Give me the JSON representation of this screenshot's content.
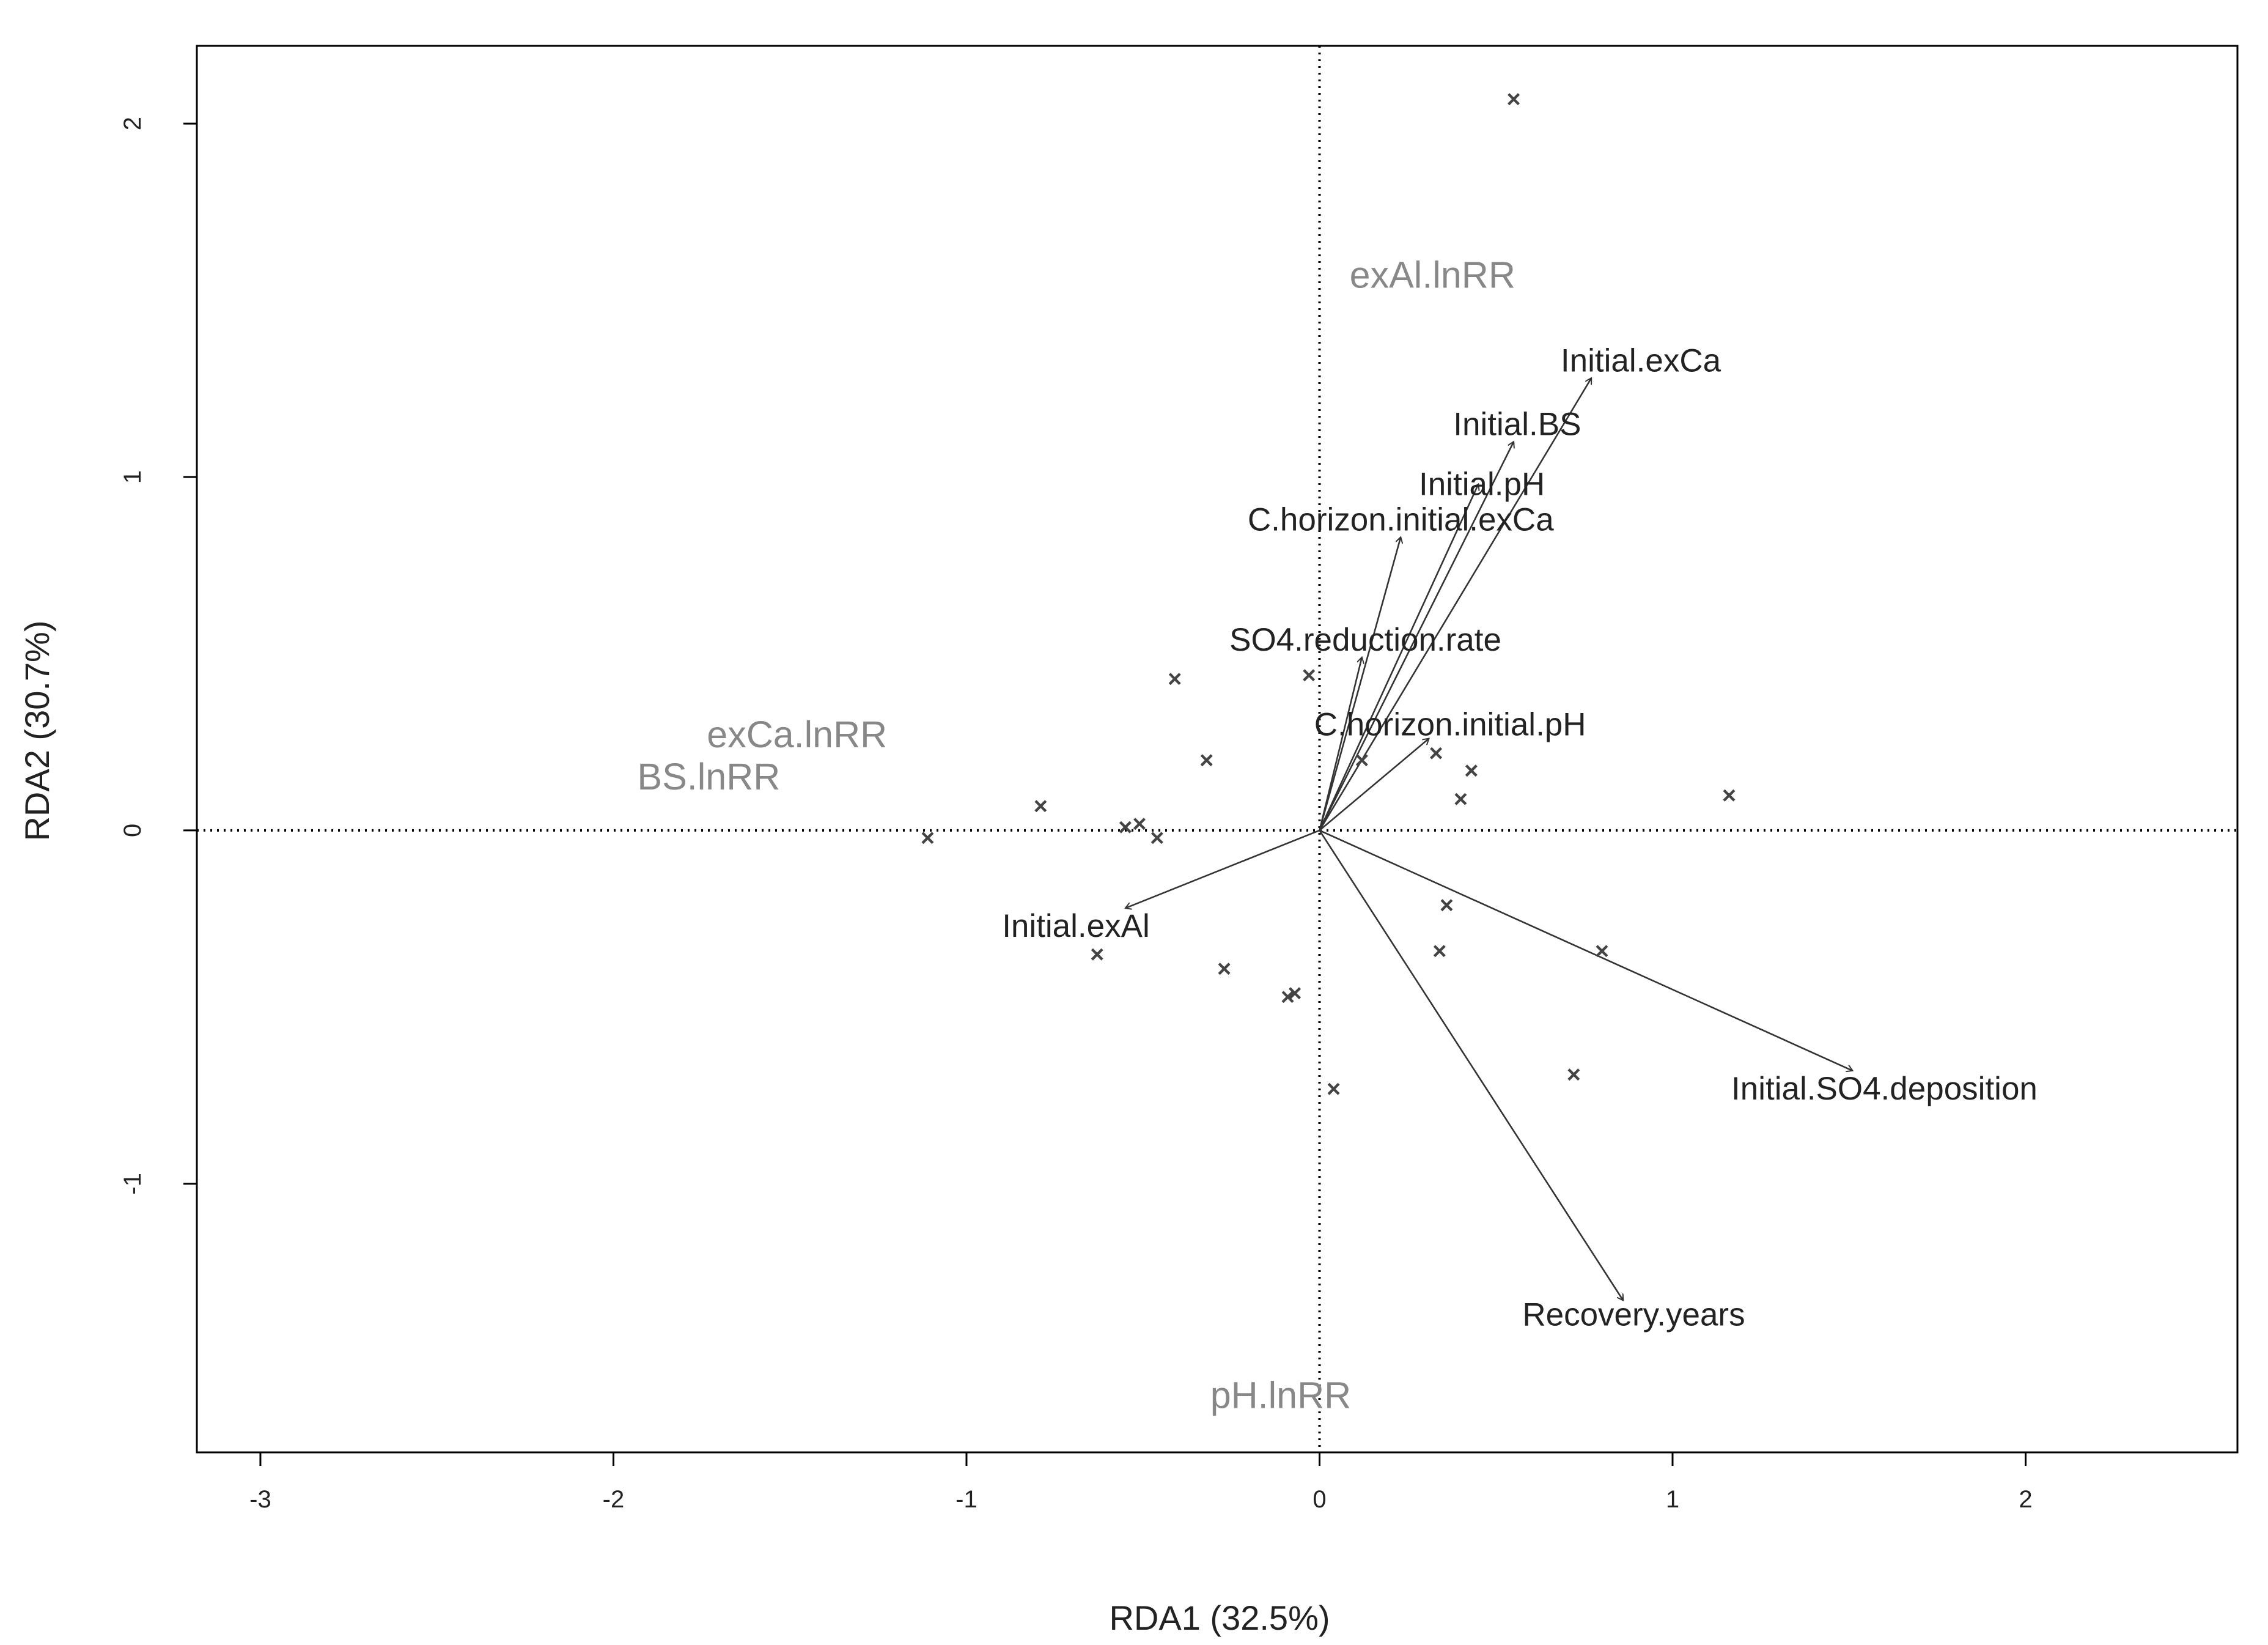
{
  "chart_data": {
    "type": "scatter",
    "subtype": "rda-biplot",
    "title": "",
    "xlabel": "RDA1 (32.5%)",
    "ylabel": "RDA2 (30.7%)",
    "xlim": [
      -3.18,
      2.6
    ],
    "ylim": [
      -1.76,
      2.22
    ],
    "x_ticks": [
      -3,
      -2,
      -1,
      0,
      1,
      2
    ],
    "y_ticks": [
      -1,
      0,
      1,
      2
    ],
    "x_tick_labels": [
      "-3",
      "-2",
      "-1",
      "0",
      "1",
      "2"
    ],
    "y_tick_labels": [
      "-1",
      "0",
      "1",
      "2"
    ],
    "zero_lines": "dotted",
    "grid": false,
    "colors": {
      "vector": "#333333",
      "point": "#444444",
      "response": "#888888",
      "axis": "#000000"
    },
    "points_marker": "×",
    "points": [
      {
        "x": 0.55,
        "y": 2.07
      },
      {
        "x": -0.03,
        "y": 0.44
      },
      {
        "x": -0.41,
        "y": 0.43
      },
      {
        "x": -0.32,
        "y": 0.2
      },
      {
        "x": -0.79,
        "y": 0.07
      },
      {
        "x": -0.55,
        "y": 0.01
      },
      {
        "x": -0.51,
        "y": 0.02
      },
      {
        "x": -0.46,
        "y": -0.02
      },
      {
        "x": -1.11,
        "y": -0.02
      },
      {
        "x": 0.12,
        "y": 0.2
      },
      {
        "x": 0.33,
        "y": 0.22
      },
      {
        "x": 0.43,
        "y": 0.17
      },
      {
        "x": 0.4,
        "y": 0.09
      },
      {
        "x": 1.16,
        "y": 0.1
      },
      {
        "x": 0.36,
        "y": -0.21
      },
      {
        "x": 0.34,
        "y": -0.34
      },
      {
        "x": 0.8,
        "y": -0.34
      },
      {
        "x": -0.63,
        "y": -0.35
      },
      {
        "x": -0.27,
        "y": -0.39
      },
      {
        "x": -0.07,
        "y": -0.46
      },
      {
        "x": -0.09,
        "y": -0.47
      },
      {
        "x": 0.72,
        "y": -0.69
      },
      {
        "x": 0.04,
        "y": -0.73
      }
    ],
    "vectors": [
      {
        "name": "Initial.exCa",
        "x": 0.77,
        "y": 1.28,
        "label_x": 0.91,
        "label_y": 1.33
      },
      {
        "name": "Initial.BS",
        "x": 0.55,
        "y": 1.1,
        "label_x": 0.56,
        "label_y": 1.15
      },
      {
        "name": "Initial.pH",
        "x": 0.45,
        "y": 0.98,
        "label_x": 0.46,
        "label_y": 0.98
      },
      {
        "name": "C.horizon.initial.exCa",
        "x": 0.23,
        "y": 0.83,
        "label_x": 0.23,
        "label_y": 0.88
      },
      {
        "name": "SO4.reduction.rate",
        "x": 0.12,
        "y": 0.49,
        "label_x": 0.13,
        "label_y": 0.54
      },
      {
        "name": "C.horizon.initial.pH",
        "x": 0.31,
        "y": 0.26,
        "label_x": 0.37,
        "label_y": 0.3
      },
      {
        "name": "Initial.exAl",
        "x": -0.55,
        "y": -0.22,
        "label_x": -0.69,
        "label_y": -0.27
      },
      {
        "name": "Initial.SO4.deposition",
        "x": 1.51,
        "y": -0.68,
        "label_x": 1.6,
        "label_y": -0.73
      },
      {
        "name": "Recovery.years",
        "x": 0.86,
        "y": -1.33,
        "label_x": 0.89,
        "label_y": -1.37
      }
    ],
    "responses": [
      {
        "name": "exAl.lnRR",
        "x": 0.32,
        "y": 1.57
      },
      {
        "name": "exCa.lnRR",
        "x": -1.48,
        "y": 0.27
      },
      {
        "name": "BS.lnRR",
        "x": -1.73,
        "y": 0.15
      },
      {
        "name": "pH.lnRR",
        "x": -0.11,
        "y": -1.6
      }
    ]
  }
}
